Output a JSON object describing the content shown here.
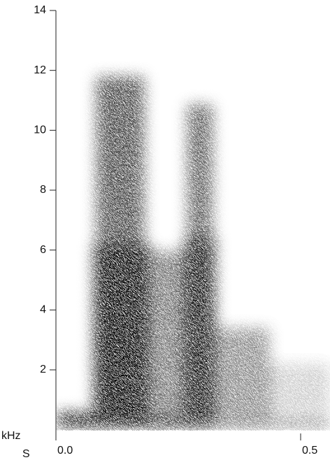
{
  "chart_data": {
    "type": "spectrogram",
    "y_label": "kHz",
    "x_label": "S",
    "ylim": [
      0,
      14
    ],
    "yticks": [
      2,
      4,
      6,
      8,
      10,
      12,
      14
    ],
    "xlim": [
      0,
      0.56
    ],
    "xticks": [
      {
        "value": 0,
        "label": "0.0"
      },
      0.5
    ],
    "color": "#000000"
  }
}
